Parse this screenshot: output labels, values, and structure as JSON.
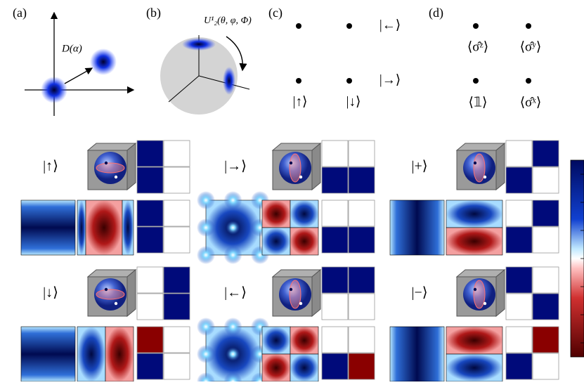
{
  "panels": {
    "a": {
      "label": "(a)",
      "operator": "D(α)"
    },
    "b": {
      "label": "(b)",
      "operator": "U¹₂(θ, φ, Φ)"
    },
    "c": {
      "label": "(c)",
      "states": [
        "|←⟩",
        "|→⟩",
        "|↑⟩",
        "|↓⟩"
      ]
    },
    "d": {
      "label": "(d)",
      "observables": [
        "⟨σ̂ᶻ⟩",
        "⟨σ̂ʸ⟩",
        "⟨𝟙⟩",
        "⟨σ̂ˣ⟩"
      ]
    }
  },
  "states": [
    "|↑⟩",
    "|→⟩",
    "|+⟩",
    "|↓⟩",
    "|←⟩",
    "|−⟩"
  ]
}
